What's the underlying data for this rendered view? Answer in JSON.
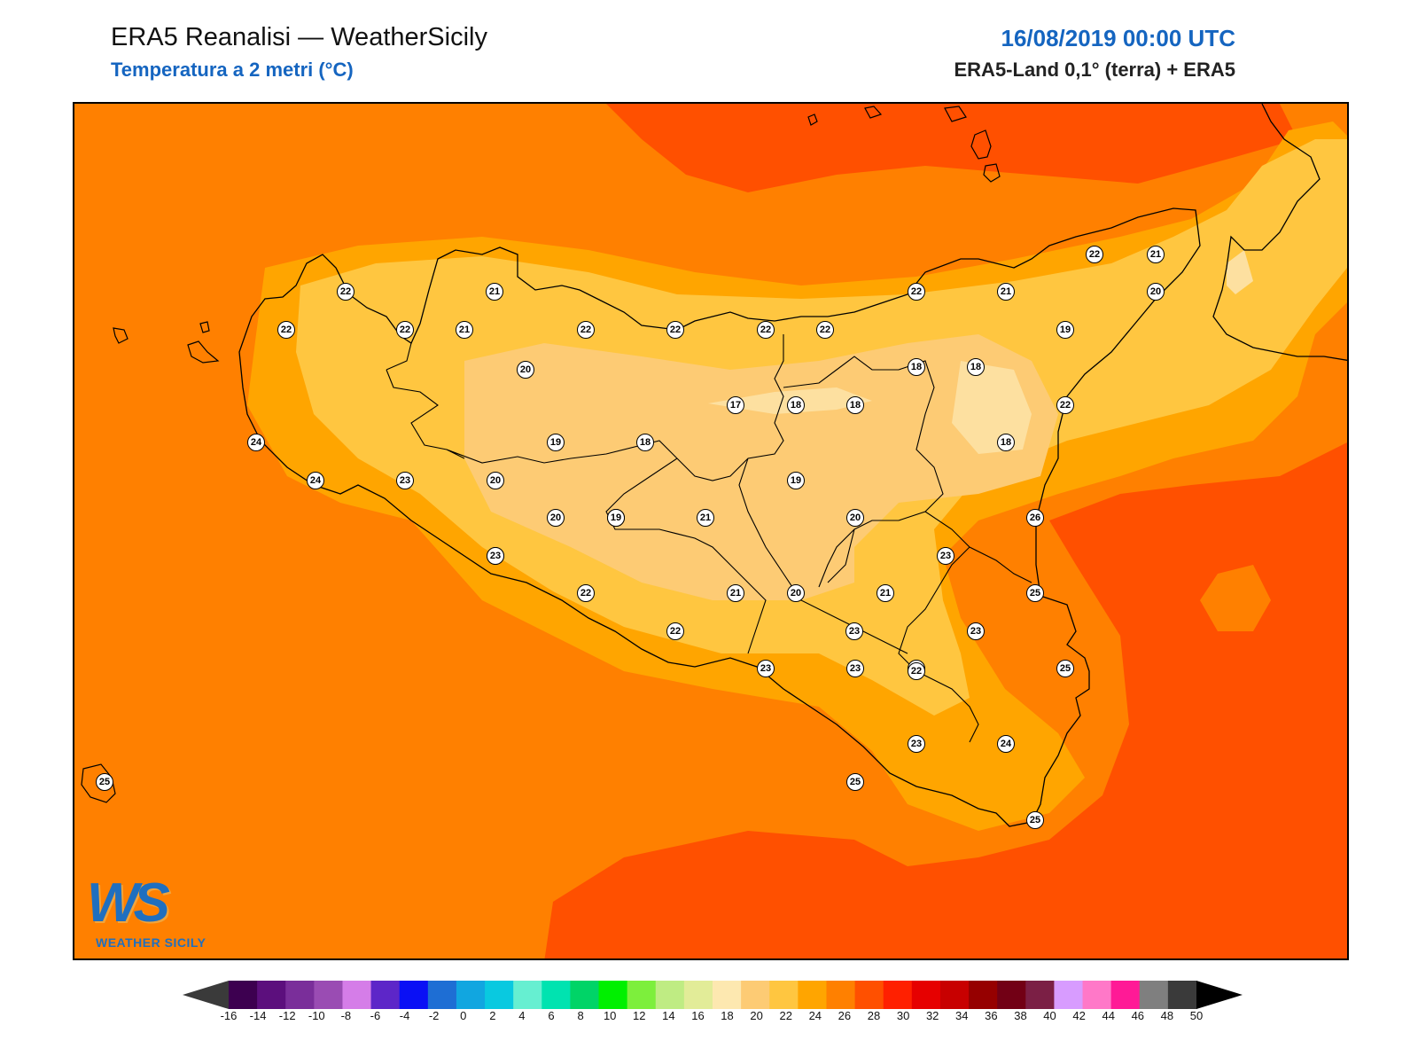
{
  "header": {
    "title": "ERA5 Reanalisi — WeatherSicily",
    "subtitle": "Temperatura a 2 metri (°C)",
    "datetime": "16/08/2019 00:00 UTC",
    "source": "ERA5-Land 0,1° (terra) + ERA5"
  },
  "colors": {
    "title_blue": "#1565c0",
    "sea_base": "#ff8000",
    "warm_sea": "#ff5000",
    "t22": "#ffa500",
    "t20": "#ffc640",
    "t18": "#fdcb74",
    "t16": "#fde0a0",
    "coastline": "#000000"
  },
  "logo": {
    "mark": "WS",
    "name": "WEATHER SICILY"
  },
  "stations": [
    {
      "v": "22"
    },
    {
      "v": "21"
    },
    {
      "v": "22"
    },
    {
      "v": "22"
    },
    {
      "v": "21"
    },
    {
      "v": "20"
    },
    {
      "v": "22"
    },
    {
      "v": "22"
    },
    {
      "v": "22"
    },
    {
      "v": "22"
    },
    {
      "v": "22"
    },
    {
      "v": "21"
    },
    {
      "v": "22"
    },
    {
      "v": "21"
    },
    {
      "v": "20"
    },
    {
      "v": "19"
    },
    {
      "v": "17"
    },
    {
      "v": "18"
    },
    {
      "v": "18"
    },
    {
      "v": "22"
    },
    {
      "v": "18"
    },
    {
      "v": "18"
    },
    {
      "v": "18"
    },
    {
      "v": "24"
    },
    {
      "v": "19"
    },
    {
      "v": "18"
    },
    {
      "v": "24"
    },
    {
      "v": "23"
    },
    {
      "v": "20"
    },
    {
      "v": "19"
    },
    {
      "v": "21"
    },
    {
      "v": "20"
    },
    {
      "v": "19"
    },
    {
      "v": "19"
    },
    {
      "v": "20"
    },
    {
      "v": "26"
    },
    {
      "v": "23"
    },
    {
      "v": "23"
    },
    {
      "v": "22"
    },
    {
      "v": "21"
    },
    {
      "v": "20"
    },
    {
      "v": "21"
    },
    {
      "v": "25"
    },
    {
      "v": "22"
    },
    {
      "v": "23"
    },
    {
      "v": "23"
    },
    {
      "v": "23"
    },
    {
      "v": "22"
    },
    {
      "v": "25"
    },
    {
      "v": "23"
    },
    {
      "v": "24"
    },
    {
      "v": "25"
    },
    {
      "v": "25"
    },
    {
      "v": "25"
    },
    {
      "v": "23"
    },
    {
      "v": "23"
    },
    {
      "v": "22"
    }
  ],
  "colorbar": {
    "labels": [
      "-16",
      "-14",
      "-12",
      "-10",
      "-8",
      "-6",
      "-4",
      "-2",
      "0",
      "2",
      "4",
      "6",
      "8",
      "10",
      "12",
      "14",
      "16",
      "18",
      "20",
      "22",
      "24",
      "26",
      "28",
      "30",
      "32",
      "34",
      "36",
      "38",
      "40",
      "42",
      "44",
      "46",
      "48",
      "50"
    ],
    "under_color": "#3a3a3a",
    "over_color": "#000000",
    "colors": [
      "#3d0050",
      "#5c0f7d",
      "#7a2e9a",
      "#9a4cb3",
      "#d57de8",
      "#5d26c8",
      "#0a10f5",
      "#1e6ed4",
      "#11a6e0",
      "#09c9e0",
      "#66efd1",
      "#00e3b0",
      "#00d467",
      "#00f000",
      "#7def3c",
      "#bfec83",
      "#e2ec98",
      "#fde8b0",
      "#fdcb74",
      "#ffc640",
      "#ffa500",
      "#ff8000",
      "#ff5000",
      "#ff2000",
      "#e60000",
      "#c80000",
      "#960000",
      "#720015",
      "#7b1f45",
      "#d89cff",
      "#ff78c8",
      "#ff1a96",
      "#7f7f7f",
      "#3a3a3a"
    ]
  }
}
